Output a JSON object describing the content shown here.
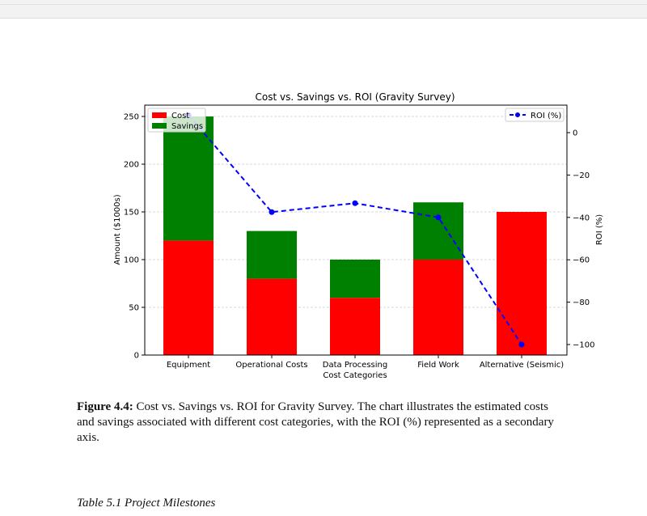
{
  "chart_data": {
    "type": "bar",
    "title": "Cost vs. Savings vs. ROI (Gravity Survey)",
    "xlabel": "Cost Categories",
    "ylabel": "Amount ($1000s)",
    "y2label": "ROI (%)",
    "categories": [
      "Equipment",
      "Operational Costs",
      "Data Processing",
      "Field Work",
      "Alternative (Seismic)"
    ],
    "stacked": true,
    "series": [
      {
        "name": "Cost",
        "values": [
          120,
          80,
          60,
          100,
          150
        ],
        "color": "#ff0000"
      },
      {
        "name": "Savings",
        "values": [
          130,
          50,
          40,
          60,
          0
        ],
        "color": "#008000"
      }
    ],
    "line_series": {
      "name": "ROI (%)",
      "values": [
        8.3,
        -37.5,
        -33.3,
        -40.0,
        -100
      ],
      "color": "#0000ff",
      "style": "dashed",
      "marker": "circle",
      "axis": "right"
    },
    "ylim": [
      0,
      250
    ],
    "y2lim": [
      -105,
      12
    ],
    "yticks": [
      0,
      50,
      100,
      150,
      200,
      250
    ],
    "y2ticks": [
      0,
      -20,
      -40,
      -60,
      -80,
      -100
    ],
    "y2tick_labels": [
      "0",
      "−20",
      "−40",
      "−60",
      "−80",
      "−100"
    ],
    "grid": "y-dashed",
    "legend_left": "upper-left",
    "legend_right": "upper-right"
  },
  "caption": {
    "label": "Figure 4.4:",
    "text": " Cost vs. Savings vs. ROI for Gravity Survey. The chart illustrates the estimated costs and savings associated with different cost categories, with the ROI (%) represented as a secondary axis."
  },
  "table_title": "Table 5.1 Project Milestones"
}
